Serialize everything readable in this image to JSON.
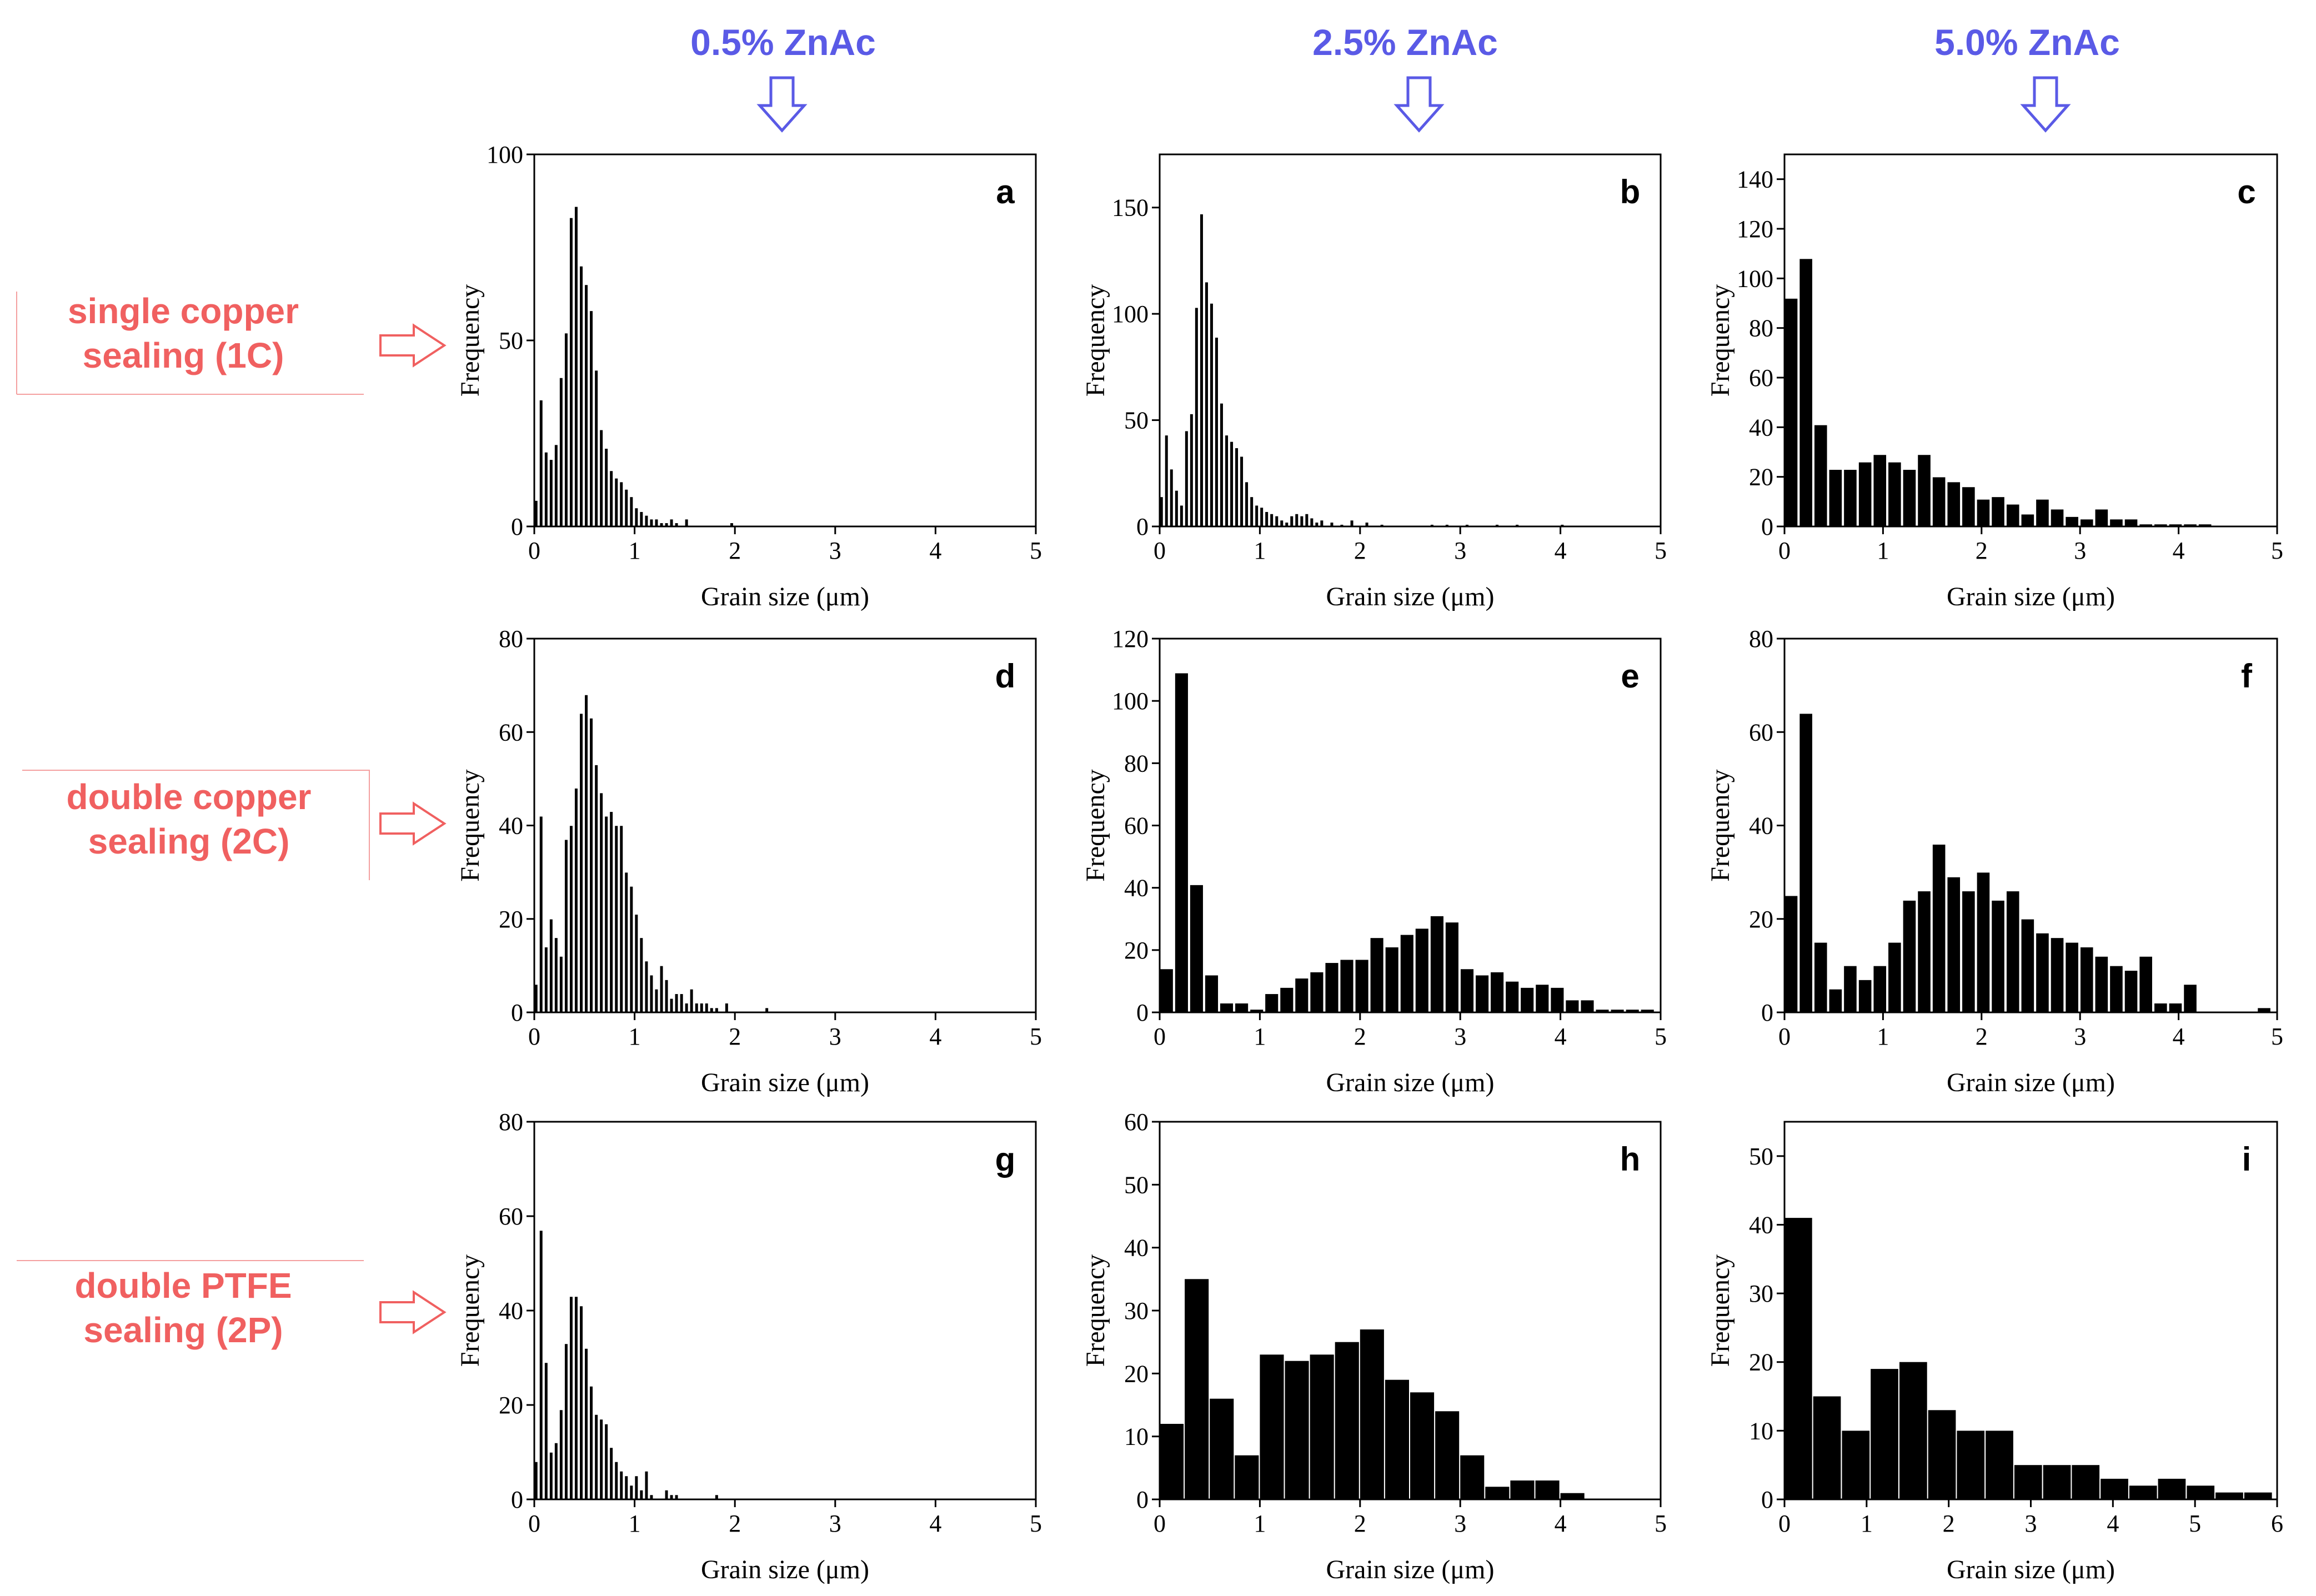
{
  "colors": {
    "column_header": "#5A5AE6",
    "row_label": "#F06060",
    "bar": "#000000",
    "arrow_down": "#5A5AE6",
    "arrow_right": "#F06060"
  },
  "column_headers": [
    "0.5% ZnAc",
    "2.5% ZnAc",
    "5.0% ZnAc"
  ],
  "row_labels": [
    [
      "single copper",
      "sealing (1C)"
    ],
    [
      "double copper",
      "sealing (2C)"
    ],
    [
      "double PTFE",
      "sealing (2P)"
    ]
  ],
  "chart_data": [
    {
      "type": "bar",
      "panel_label": "a",
      "xlabel": "Grain size (μm)",
      "ylabel": "Frequency",
      "xlim": [
        0,
        5
      ],
      "ylim": [
        0,
        100
      ],
      "xticks": [
        0,
        1,
        2,
        3,
        4,
        5
      ],
      "yticks": [
        0,
        50,
        100
      ],
      "bin_width": 0.05,
      "x": [
        0.025,
        0.075,
        0.125,
        0.175,
        0.225,
        0.275,
        0.325,
        0.375,
        0.425,
        0.475,
        0.525,
        0.575,
        0.625,
        0.675,
        0.725,
        0.775,
        0.825,
        0.875,
        0.925,
        0.975,
        1.025,
        1.075,
        1.125,
        1.175,
        1.225,
        1.275,
        1.325,
        1.375,
        1.425,
        1.525,
        1.975
      ],
      "values": [
        7,
        34,
        20,
        18,
        22,
        40,
        52,
        83,
        86,
        70,
        65,
        58,
        42,
        26,
        21,
        15,
        13,
        12,
        10,
        8,
        5,
        4,
        3,
        2,
        2,
        1,
        1,
        2,
        1,
        2,
        1
      ]
    },
    {
      "type": "bar",
      "panel_label": "b",
      "xlabel": "Grain size (μm)",
      "ylabel": "Frequency",
      "xlim": [
        0,
        5
      ],
      "ylim": [
        0,
        175
      ],
      "xticks": [
        0,
        1,
        2,
        3,
        4,
        5
      ],
      "yticks": [
        0,
        50,
        100,
        150
      ],
      "bin_width": 0.05,
      "x": [
        0.025,
        0.075,
        0.125,
        0.175,
        0.225,
        0.275,
        0.325,
        0.375,
        0.425,
        0.475,
        0.525,
        0.575,
        0.625,
        0.675,
        0.725,
        0.775,
        0.825,
        0.875,
        0.925,
        0.975,
        1.025,
        1.075,
        1.125,
        1.175,
        1.225,
        1.275,
        1.325,
        1.375,
        1.425,
        1.475,
        1.525,
        1.575,
        1.625,
        1.725,
        1.825,
        1.925,
        2.075,
        2.225,
        2.725,
        2.875,
        3.075,
        3.375,
        3.575,
        4.025
      ],
      "values": [
        14,
        43,
        27,
        17,
        10,
        45,
        53,
        103,
        147,
        115,
        105,
        89,
        58,
        43,
        40,
        37,
        33,
        21,
        14,
        10,
        9,
        7,
        6,
        5,
        3,
        2,
        5,
        6,
        5,
        6,
        4,
        2,
        3,
        2,
        1,
        3,
        2,
        1,
        1,
        1,
        1,
        1,
        1,
        1
      ]
    },
    {
      "type": "bar",
      "panel_label": "c",
      "xlabel": "Grain size (μm)",
      "ylabel": "Frequency",
      "xlim": [
        0,
        5
      ],
      "ylim": [
        0,
        150
      ],
      "xticks": [
        0,
        1,
        2,
        3,
        4,
        5
      ],
      "yticks": [
        0,
        20,
        40,
        60,
        80,
        100,
        120,
        140
      ],
      "bin_width": 0.15,
      "x": [
        0.075,
        0.225,
        0.375,
        0.525,
        0.675,
        0.825,
        0.975,
        1.125,
        1.275,
        1.425,
        1.575,
        1.725,
        1.875,
        2.025,
        2.175,
        2.325,
        2.475,
        2.625,
        2.775,
        2.925,
        3.075,
        3.225,
        3.375,
        3.525,
        3.675,
        3.825,
        3.975,
        4.125,
        4.275,
        4.425,
        4.575,
        4.725,
        4.875
      ],
      "values": [
        92,
        108,
        41,
        23,
        23,
        26,
        29,
        26,
        23,
        29,
        20,
        18,
        16,
        11,
        12,
        9,
        5,
        11,
        7,
        4,
        3,
        7,
        3,
        3,
        1,
        1,
        1,
        1,
        1,
        0,
        0,
        0,
        0
      ]
    },
    {
      "type": "bar",
      "panel_label": "d",
      "xlabel": "Grain size (μm)",
      "ylabel": "Frequency",
      "xlim": [
        0,
        5
      ],
      "ylim": [
        0,
        80
      ],
      "xticks": [
        0,
        1,
        2,
        3,
        4,
        5
      ],
      "yticks": [
        0,
        20,
        40,
        60,
        80
      ],
      "bin_width": 0.05,
      "x": [
        0.025,
        0.075,
        0.125,
        0.175,
        0.225,
        0.275,
        0.325,
        0.375,
        0.425,
        0.475,
        0.525,
        0.575,
        0.625,
        0.675,
        0.725,
        0.775,
        0.825,
        0.875,
        0.925,
        0.975,
        1.025,
        1.075,
        1.125,
        1.175,
        1.225,
        1.275,
        1.325,
        1.375,
        1.425,
        1.475,
        1.525,
        1.575,
        1.625,
        1.675,
        1.725,
        1.775,
        1.825,
        1.925,
        2.025,
        2.325
      ],
      "values": [
        6,
        42,
        14,
        20,
        16,
        12,
        37,
        40,
        48,
        64,
        68,
        63,
        53,
        47,
        42,
        43,
        40,
        40,
        30,
        27,
        21,
        16,
        11,
        8,
        5,
        10,
        7,
        3,
        4,
        4,
        2,
        5,
        2,
        2,
        2,
        1,
        1,
        2,
        0,
        1
      ]
    },
    {
      "type": "bar",
      "panel_label": "e",
      "xlabel": "Grain size (μm)",
      "ylabel": "Frequency",
      "xlim": [
        0,
        5
      ],
      "ylim": [
        0,
        120
      ],
      "xticks": [
        0,
        1,
        2,
        3,
        4,
        5
      ],
      "yticks": [
        0,
        20,
        40,
        60,
        80,
        100,
        120
      ],
      "bin_width": 0.15,
      "x": [
        0.075,
        0.225,
        0.375,
        0.525,
        0.675,
        0.825,
        0.975,
        1.125,
        1.275,
        1.425,
        1.575,
        1.725,
        1.875,
        2.025,
        2.175,
        2.325,
        2.475,
        2.625,
        2.775,
        2.925,
        3.075,
        3.225,
        3.375,
        3.525,
        3.675,
        3.825,
        3.975,
        4.125,
        4.275,
        4.425,
        4.575,
        4.725,
        4.875
      ],
      "values": [
        14,
        109,
        41,
        12,
        3,
        3,
        1,
        6,
        8,
        11,
        13,
        16,
        17,
        17,
        24,
        21,
        25,
        27,
        31,
        29,
        14,
        12,
        13,
        10,
        8,
        9,
        8,
        4,
        4,
        1,
        1,
        1,
        1
      ]
    },
    {
      "type": "bar",
      "panel_label": "f",
      "xlabel": "Grain size (μm)",
      "ylabel": "Frequency",
      "xlim": [
        0,
        5
      ],
      "ylim": [
        0,
        80
      ],
      "xticks": [
        0,
        1,
        2,
        3,
        4,
        5
      ],
      "yticks": [
        0,
        20,
        40,
        60,
        80
      ],
      "bin_width": 0.15,
      "x": [
        0.075,
        0.225,
        0.375,
        0.525,
        0.675,
        0.825,
        0.975,
        1.125,
        1.275,
        1.425,
        1.575,
        1.725,
        1.875,
        2.025,
        2.175,
        2.325,
        2.475,
        2.625,
        2.775,
        2.925,
        3.075,
        3.225,
        3.375,
        3.525,
        3.675,
        3.825,
        3.975,
        4.125,
        4.275,
        4.425,
        4.575,
        4.725,
        4.875
      ],
      "values": [
        25,
        64,
        15,
        5,
        10,
        7,
        10,
        15,
        24,
        26,
        36,
        29,
        26,
        30,
        24,
        26,
        20,
        17,
        16,
        15,
        14,
        12,
        10,
        9,
        12,
        2,
        2,
        6,
        0,
        0,
        0,
        0,
        1
      ]
    },
    {
      "type": "bar",
      "panel_label": "g",
      "xlabel": "Grain size (μm)",
      "ylabel": "Frequency",
      "xlim": [
        0,
        5
      ],
      "ylim": [
        0,
        80
      ],
      "xticks": [
        0,
        1,
        2,
        3,
        4,
        5
      ],
      "yticks": [
        0,
        20,
        40,
        60,
        80
      ],
      "bin_width": 0.05,
      "x": [
        0.025,
        0.075,
        0.125,
        0.175,
        0.225,
        0.275,
        0.325,
        0.375,
        0.425,
        0.475,
        0.525,
        0.575,
        0.625,
        0.675,
        0.725,
        0.775,
        0.825,
        0.875,
        0.925,
        0.975,
        1.025,
        1.075,
        1.125,
        1.175,
        1.325,
        1.375,
        1.425,
        1.825
      ],
      "values": [
        8,
        57,
        29,
        10,
        12,
        19,
        33,
        43,
        43,
        41,
        32,
        24,
        18,
        17,
        16,
        11,
        8,
        6,
        5,
        3,
        5,
        2,
        6,
        1,
        2,
        1,
        1,
        1
      ]
    },
    {
      "type": "bar",
      "panel_label": "h",
      "xlabel": "Grain size (μm)",
      "ylabel": "Frequency",
      "xlim": [
        0,
        5
      ],
      "ylim": [
        0,
        60
      ],
      "xticks": [
        0,
        1,
        2,
        3,
        4,
        5
      ],
      "yticks": [
        0,
        10,
        20,
        30,
        40,
        50,
        60
      ],
      "bin_width": 0.25,
      "x": [
        0.125,
        0.375,
        0.625,
        0.875,
        1.125,
        1.375,
        1.625,
        1.875,
        2.125,
        2.375,
        2.625,
        2.875,
        3.125,
        3.375,
        3.625,
        3.875,
        4.125,
        4.375
      ],
      "values": [
        12,
        35,
        16,
        7,
        23,
        22,
        23,
        25,
        27,
        19,
        17,
        14,
        7,
        2,
        3,
        3,
        1,
        0
      ]
    },
    {
      "type": "bar",
      "panel_label": "i",
      "xlabel": "Grain size (μm)",
      "ylabel": "Frequency",
      "xlim": [
        0,
        6
      ],
      "ylim": [
        0,
        55
      ],
      "xticks": [
        0,
        1,
        2,
        3,
        4,
        5,
        6
      ],
      "yticks": [
        0,
        10,
        20,
        30,
        40,
        50
      ],
      "bin_width": 0.35,
      "x": [
        0.175,
        0.525,
        0.875,
        1.225,
        1.575,
        1.925,
        2.275,
        2.625,
        2.975,
        3.325,
        3.675,
        4.025,
        4.375,
        4.725,
        5.075,
        5.425,
        5.775
      ],
      "values": [
        41,
        15,
        10,
        19,
        20,
        13,
        10,
        10,
        5,
        5,
        5,
        3,
        2,
        3,
        2,
        1,
        1
      ]
    }
  ]
}
